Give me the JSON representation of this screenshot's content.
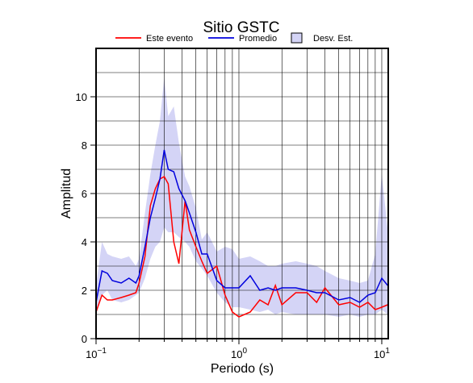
{
  "chart_data": {
    "type": "line",
    "title": "Sitio GSTC",
    "xlabel": "Periodo (s)",
    "ylabel": "Amplitud",
    "xscale": "log",
    "xlim": [
      0.1,
      11.1
    ],
    "ylim": [
      0,
      12
    ],
    "xticks": [
      {
        "value": 0.1,
        "label": "10",
        "exponent": "−1"
      },
      {
        "value": 1,
        "label": "10",
        "exponent": "0"
      },
      {
        "value": 10,
        "label": "10",
        "exponent": "1"
      }
    ],
    "yticks": [
      0,
      2,
      4,
      6,
      8,
      10
    ],
    "x_grid": [
      0.2,
      0.3,
      0.4,
      0.5,
      0.6,
      0.7,
      0.8,
      0.9,
      1,
      2,
      3,
      4,
      5,
      6,
      7,
      8,
      9,
      10
    ],
    "y_grid": [
      1,
      2,
      3,
      4,
      5,
      6,
      7,
      8,
      9,
      10,
      11
    ],
    "legend": "top",
    "x": [
      0.1,
      0.11,
      0.12,
      0.13,
      0.15,
      0.17,
      0.19,
      0.2,
      0.22,
      0.24,
      0.26,
      0.28,
      0.3,
      0.32,
      0.35,
      0.38,
      0.42,
      0.45,
      0.5,
      0.55,
      0.6,
      0.7,
      0.8,
      0.9,
      1.0,
      1.2,
      1.4,
      1.6,
      1.8,
      2,
      2.5,
      3,
      3.5,
      4,
      5,
      6,
      7,
      8,
      9,
      10,
      11
    ],
    "band": {
      "name": "Desv. Est.",
      "color": "#d4d4f6",
      "upper": [
        2.2,
        4.0,
        3.5,
        3.4,
        3.3,
        3.4,
        3.0,
        3.3,
        5.2,
        6.8,
        8.0,
        9.0,
        10.8,
        9.2,
        9.6,
        8.1,
        6.7,
        6.3,
        5.4,
        4.1,
        4.4,
        3.6,
        3.8,
        3.7,
        3.3,
        3.4,
        3.2,
        3.0,
        3.0,
        3.1,
        3.2,
        3.1,
        3.0,
        2.8,
        2.5,
        2.4,
        2.3,
        2.4,
        3.5,
        6.8,
        4.5
      ],
      "lower": [
        1.2,
        1.8,
        2.0,
        1.6,
        1.5,
        1.6,
        1.8,
        1.9,
        2.5,
        3.3,
        3.8,
        4.0,
        4.6,
        4.4,
        4.4,
        4.2,
        4.0,
        3.8,
        3.2,
        2.9,
        2.6,
        1.9,
        1.5,
        1.3,
        1.3,
        1.2,
        1.1,
        1.2,
        1.0,
        1.1,
        1.0,
        1.0,
        1.0,
        1.0,
        0.9,
        1.0,
        0.9,
        1.0,
        1.0,
        1.2,
        1.0
      ]
    },
    "series": [
      {
        "name": "Este evento",
        "color": "#ff0000",
        "values": [
          1.1,
          1.8,
          1.6,
          1.6,
          1.7,
          1.8,
          1.9,
          2.3,
          3.4,
          5.5,
          6.2,
          6.6,
          6.7,
          6.4,
          4.0,
          3.1,
          5.7,
          4.5,
          3.8,
          3.2,
          2.7,
          3.0,
          1.8,
          1.1,
          0.9,
          1.1,
          1.6,
          1.4,
          2.2,
          1.4,
          1.9,
          1.9,
          1.5,
          2.1,
          1.4,
          1.5,
          1.3,
          1.5,
          1.2,
          1.3,
          1.4
        ]
      },
      {
        "name": "Promedio",
        "color": "#0000dd",
        "values": [
          1.5,
          2.8,
          2.7,
          2.4,
          2.3,
          2.5,
          2.3,
          2.6,
          3.8,
          5.0,
          5.8,
          6.6,
          7.8,
          7.0,
          6.9,
          6.2,
          5.7,
          5.2,
          4.4,
          3.5,
          3.5,
          2.4,
          2.1,
          2.1,
          2.1,
          2.6,
          2.0,
          2.1,
          2.0,
          2.1,
          2.1,
          2.0,
          1.9,
          1.9,
          1.6,
          1.7,
          1.5,
          1.8,
          1.9,
          2.5,
          2.2
        ]
      }
    ]
  }
}
